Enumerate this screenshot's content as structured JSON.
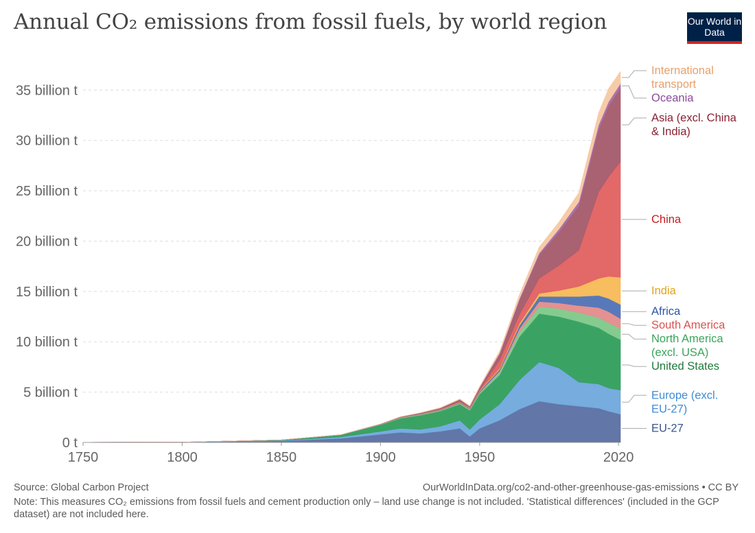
{
  "header": {
    "title": "Annual CO₂ emissions from fossil fuels, by world region",
    "logo": "Our World in Data"
  },
  "footer": {
    "source": "Source: Global Carbon Project",
    "url": "OurWorldInData.org/co2-and-other-greenhouse-gas-emissions • CC BY",
    "note": "Note: This measures CO₂ emissions from fossil fuels and cement production only – land use change is not included. 'Statistical differences' (included in the GCP dataset) are not included here."
  },
  "chart_data": {
    "type": "area",
    "stacked": true,
    "title": "Annual CO₂ emissions from fossil fuels, by world region",
    "xlim": [
      1750,
      2021
    ],
    "ylim": [
      0,
      37
    ],
    "x_ticks": [
      1750,
      1800,
      1850,
      1900,
      1950,
      2020
    ],
    "y_ticks": [
      0,
      5,
      10,
      15,
      20,
      25,
      30,
      35
    ],
    "y_tick_labels": [
      "0 t",
      "5 billion t",
      "10 billion t",
      "15 billion t",
      "20 billion t",
      "25 billion t",
      "30 billion t",
      "35 billion t"
    ],
    "grid": "horizontal dashed",
    "legend": "right labels",
    "x": [
      1750,
      1800,
      1850,
      1880,
      1900,
      1910,
      1920,
      1930,
      1940,
      1945,
      1950,
      1960,
      1970,
      1980,
      1990,
      2000,
      2010,
      2015,
      2021
    ],
    "series": [
      {
        "name": "EU-27",
        "color": "#5a6fa3",
        "values": [
          0.01,
          0.03,
          0.15,
          0.4,
          0.8,
          1.0,
          0.9,
          1.1,
          1.4,
          0.6,
          1.4,
          2.2,
          3.3,
          4.1,
          3.8,
          3.6,
          3.4,
          3.1,
          2.8
        ]
      },
      {
        "name": "Europe (excl. EU-27)",
        "color": "#6fa8dc",
        "values": [
          0.001,
          0.002,
          0.05,
          0.15,
          0.3,
          0.4,
          0.4,
          0.5,
          0.8,
          0.7,
          0.9,
          1.6,
          2.9,
          3.9,
          3.6,
          2.4,
          2.4,
          2.3,
          2.4
        ]
      },
      {
        "name": "United States",
        "color": "#2f9e5c",
        "values": [
          0.0,
          0.002,
          0.05,
          0.2,
          0.66,
          1.0,
          1.4,
          1.5,
          1.6,
          1.9,
          2.5,
          2.9,
          4.3,
          4.8,
          5.1,
          6.0,
          5.6,
          5.4,
          5.0
        ]
      },
      {
        "name": "North America (excl. USA)",
        "color": "#7ec88a",
        "values": [
          0.0,
          0.0,
          0.002,
          0.01,
          0.03,
          0.05,
          0.06,
          0.06,
          0.07,
          0.08,
          0.12,
          0.25,
          0.5,
          0.7,
          0.8,
          0.9,
          1.0,
          1.1,
          1.1
        ]
      },
      {
        "name": "South America",
        "color": "#e38b8b",
        "values": [
          0.0,
          0.0,
          0.0,
          0.003,
          0.01,
          0.02,
          0.03,
          0.04,
          0.05,
          0.06,
          0.08,
          0.15,
          0.3,
          0.5,
          0.55,
          0.7,
          1.0,
          1.1,
          1.0
        ]
      },
      {
        "name": "Africa",
        "color": "#4f72b5",
        "values": [
          0.0,
          0.0,
          0.0,
          0.002,
          0.01,
          0.02,
          0.03,
          0.04,
          0.05,
          0.06,
          0.1,
          0.15,
          0.3,
          0.5,
          0.65,
          0.9,
          1.2,
          1.3,
          1.4
        ]
      },
      {
        "name": "India",
        "color": "#f7b955",
        "values": [
          0.0,
          0.0,
          0.0,
          0.002,
          0.01,
          0.02,
          0.03,
          0.04,
          0.05,
          0.05,
          0.07,
          0.12,
          0.2,
          0.3,
          0.6,
          1.0,
          1.7,
          2.2,
          2.7
        ]
      },
      {
        "name": "China",
        "color": "#e26060",
        "values": [
          0.0,
          0.0,
          0.0,
          0.0,
          0.0,
          0.002,
          0.005,
          0.01,
          0.03,
          0.02,
          0.08,
          0.8,
          0.9,
          1.5,
          2.5,
          3.6,
          8.6,
          9.9,
          11.5
        ]
      },
      {
        "name": "Asia (excl. China & India)",
        "color": "#a45a6a",
        "values": [
          0.0,
          0.0,
          0.0,
          0.001,
          0.005,
          0.03,
          0.06,
          0.1,
          0.2,
          0.1,
          0.2,
          0.6,
          1.4,
          2.3,
          3.3,
          4.4,
          6.2,
          7.0,
          7.3
        ]
      },
      {
        "name": "Oceania",
        "color": "#a36ba8",
        "values": [
          0.0,
          0.0,
          0.0,
          0.001,
          0.005,
          0.01,
          0.015,
          0.02,
          0.025,
          0.03,
          0.04,
          0.08,
          0.15,
          0.2,
          0.3,
          0.4,
          0.45,
          0.45,
          0.45
        ]
      },
      {
        "name": "International transport",
        "color": "#f7c8a2",
        "values": [
          0.0,
          0.0,
          0.0,
          0.0,
          0.002,
          0.01,
          0.02,
          0.05,
          0.05,
          0.05,
          0.1,
          0.2,
          0.4,
          0.6,
          0.7,
          0.9,
          1.2,
          1.3,
          1.2
        ]
      }
    ],
    "right_labels": [
      {
        "text": [
          "International",
          "transport"
        ],
        "series": "International transport",
        "color": "#e8a06a"
      },
      {
        "text": [
          "Oceania"
        ],
        "series": "Oceania",
        "color": "#8b4a98"
      },
      {
        "text": [
          "Asia (excl. China",
          "& India)"
        ],
        "series": "Asia (excl. China & India)",
        "color": "#8b2233"
      },
      {
        "text": [
          "China"
        ],
        "series": "China",
        "color": "#c51b1b"
      },
      {
        "text": [
          "India"
        ],
        "series": "India",
        "color": "#e3a21a"
      },
      {
        "text": [
          "Africa"
        ],
        "series": "Africa",
        "color": "#2b56a6"
      },
      {
        "text": [
          "South America"
        ],
        "series": "South America",
        "color": "#d9534f"
      },
      {
        "text": [
          "North America",
          "(excl. USA)"
        ],
        "series": "North America (excl. USA)",
        "color": "#3aa45b"
      },
      {
        "text": [
          "United States"
        ],
        "series": "United States",
        "color": "#1e7a3c"
      },
      {
        "text": [
          "Europe (excl.",
          "EU-27)"
        ],
        "series": "Europe (excl. EU-27)",
        "color": "#3f8cd6"
      },
      {
        "text": [
          "EU-27"
        ],
        "series": "EU-27",
        "color": "#3a5591"
      }
    ]
  }
}
